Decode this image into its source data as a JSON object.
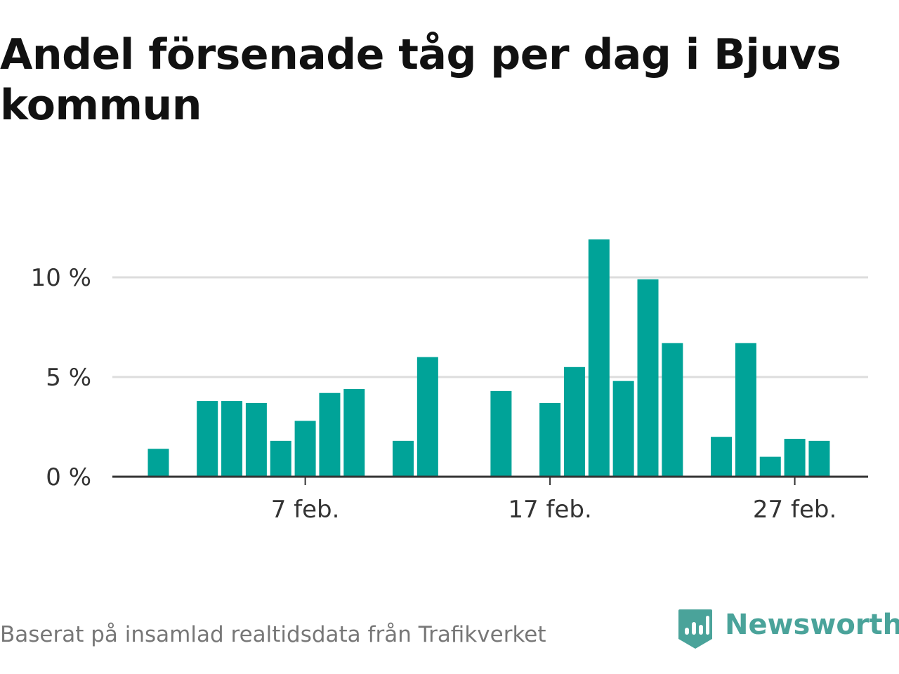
{
  "title": "Andel försenade tåg per dag i Bjuvs kommun",
  "source_note": "Baserat på insamlad realtidsdata från Trafikverket",
  "brand": {
    "name": "Newsworthy",
    "icon": "newsworthy-logo-icon"
  },
  "colors": {
    "bar": "#00a398",
    "brand": "#4aa39a",
    "grid": "#dddddd",
    "axis": "#333333"
  },
  "chart_data": {
    "type": "bar",
    "title": "Andel försenade tåg per dag i Bjuvs kommun",
    "xlabel": "",
    "ylabel": "",
    "x": [
      "2024-02-01",
      "2024-02-02",
      "2024-02-03",
      "2024-02-04",
      "2024-02-05",
      "2024-02-06",
      "2024-02-07",
      "2024-02-08",
      "2024-02-09",
      "2024-02-10",
      "2024-02-11",
      "2024-02-12",
      "2024-02-13",
      "2024-02-14",
      "2024-02-15",
      "2024-02-16",
      "2024-02-17",
      "2024-02-18",
      "2024-02-19",
      "2024-02-20",
      "2024-02-21",
      "2024-02-22",
      "2024-02-23",
      "2024-02-24",
      "2024-02-25",
      "2024-02-26",
      "2024-02-27",
      "2024-02-28",
      "2024-02-29"
    ],
    "values": [
      1.4,
      null,
      3.8,
      3.8,
      3.7,
      1.8,
      2.8,
      4.2,
      4.4,
      null,
      1.8,
      6.0,
      null,
      null,
      4.3,
      null,
      3.7,
      5.5,
      11.9,
      4.8,
      9.9,
      6.7,
      null,
      2.0,
      6.7,
      1.0,
      1.9,
      1.8,
      null
    ],
    "unit": "%",
    "ylim": [
      0,
      12
    ],
    "y_ticks": [
      {
        "value": 0,
        "label": "0 %"
      },
      {
        "value": 5,
        "label": "5 %"
      },
      {
        "value": 10,
        "label": "10 %"
      }
    ],
    "x_ticks": [
      {
        "value": "2024-02-07",
        "label": "7 feb."
      },
      {
        "value": "2024-02-17",
        "label": "17 feb."
      },
      {
        "value": "2024-02-27",
        "label": "27 feb."
      }
    ],
    "grid": true,
    "legend": "none"
  }
}
